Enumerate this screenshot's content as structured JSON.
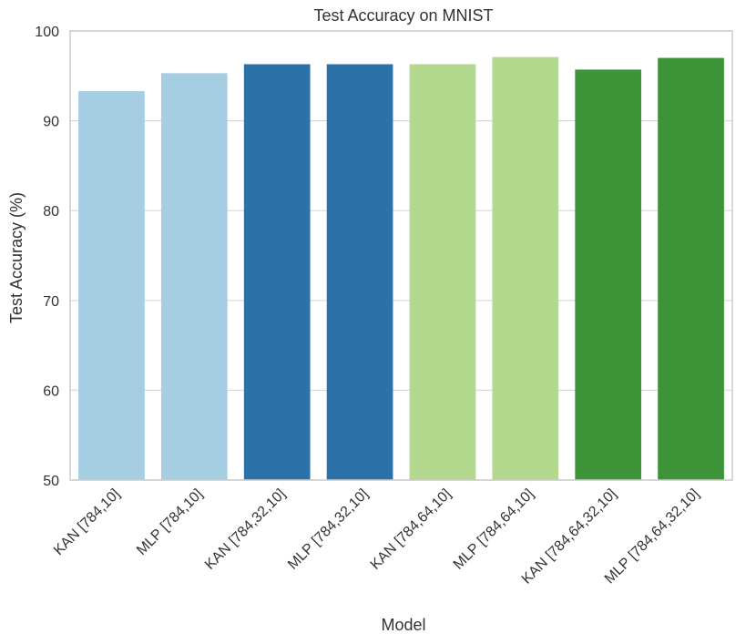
{
  "chart_data": {
    "type": "bar",
    "title": "Test Accuracy on MNIST",
    "xlabel": "Model",
    "ylabel": "Test Accuracy (%)",
    "ylim": [
      50,
      100
    ],
    "yticks": [
      50,
      60,
      70,
      80,
      90,
      100
    ],
    "grid": "horizontal",
    "categories": [
      "KAN [784,10]",
      "MLP [784,10]",
      "KAN [784,32,10]",
      "MLP [784,32,10]",
      "KAN [784,64,10]",
      "MLP [784,64,10]",
      "KAN [784,64,32,10]",
      "MLP [784,64,32,10]"
    ],
    "values": [
      93.3,
      95.3,
      96.3,
      96.3,
      96.3,
      97.1,
      95.7,
      97.0
    ],
    "colors": [
      "#a6cee3",
      "#a6cee3",
      "#2b72a8",
      "#2b72a8",
      "#b2d98e",
      "#b2d98e",
      "#3d9438",
      "#3d9438"
    ]
  }
}
